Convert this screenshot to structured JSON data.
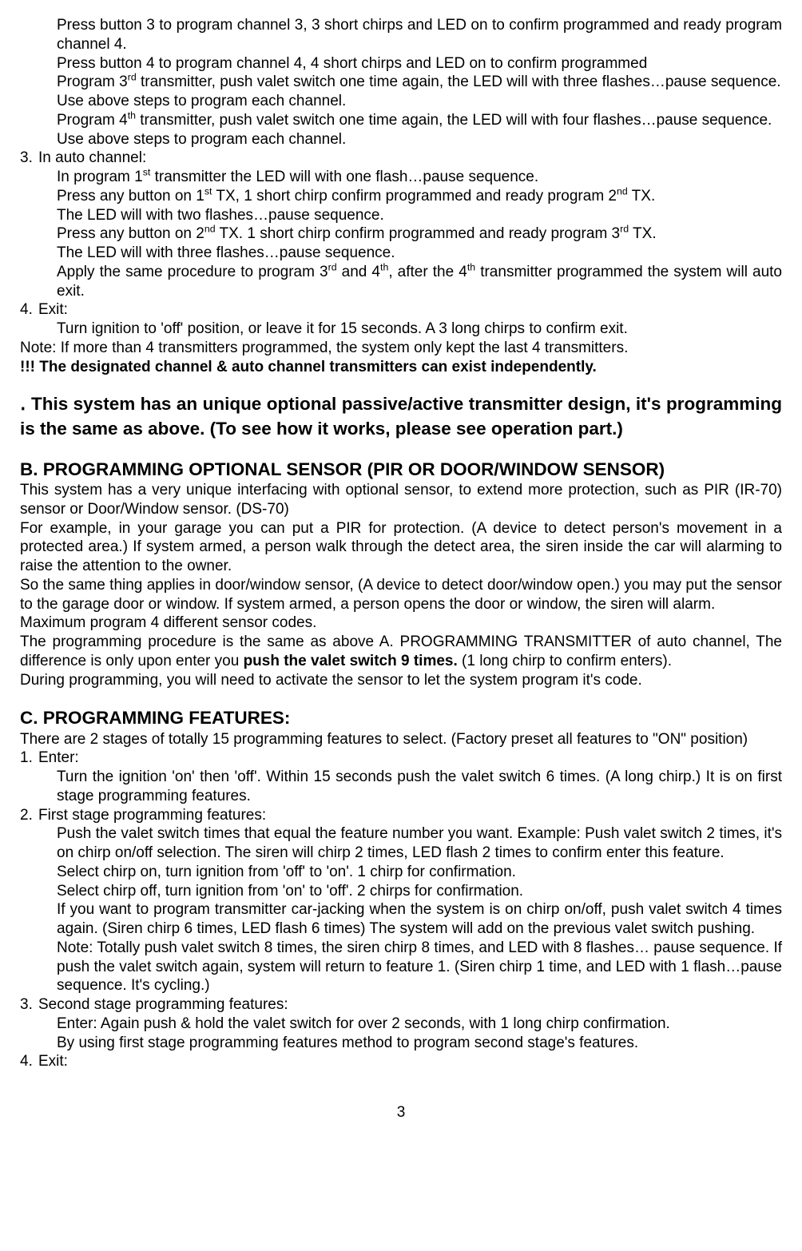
{
  "p1": "Press button 3 to program channel 3, 3 short chirps and LED on to confirm programmed and ready program channel 4.",
  "p2": "Press button 4 to program channel 4, 4 short chirps and LED on to confirm programmed",
  "p3a": "Program 3",
  "p3sup": "rd",
  "p3b": " transmitter, push valet switch one time again, the LED will with three flashes…pause sequence.",
  "p4": "Use above steps to program each channel.",
  "p5a": "Program 4",
  "p5sup": "th",
  "p5b": " transmitter, push valet switch one time again, the LED will with four flashes…pause sequence.",
  "p6": "Use above steps to program each channel.",
  "li3num": "3.",
  "li3": "In auto channel:",
  "p7a": "In program 1",
  "p7sup": "st",
  "p7b": " transmitter the LED will with one flash…pause sequence.",
  "p8a": "Press any button on 1",
  "p8sup1": "st",
  "p8b": " TX, 1 short chirp confirm programmed and ready program 2",
  "p8sup2": "nd",
  "p8c": " TX.",
  "p9": "The LED will with two flashes…pause sequence.",
  "p10a": "Press any button on 2",
  "p10sup1": "nd",
  "p10b": " TX. 1 short chirp confirm programmed and ready program 3",
  "p10sup2": "rd",
  "p10c": " TX.",
  "p11": "The LED will with three flashes…pause sequence.",
  "p12a": "Apply the same procedure to program 3",
  "p12sup1": "rd",
  "p12b": " and 4",
  "p12sup2": "th",
  "p12c": ", after the 4",
  "p12sup3": "th",
  "p12d": " transmitter programmed the system will auto exit.",
  "li4num": "4.",
  "li4": "Exit:",
  "p13": "Turn ignition to 'off' position, or leave it for 15 seconds. A 3 long chirps to confirm exit.",
  "p14": "Note: If more than 4 transmitters programmed, the system only kept the last 4 transmitters.",
  "p15": "!!! The designated channel & auto channel transmitters can exist independently.",
  "bullet": "․ This system has an unique optional passive/active transmitter design, it's programming is the same as above. (To see how it works, please see operation part.)",
  "hB": "B. PROGRAMMING OPTIONAL SENSOR (PIR OR DOOR/WINDOW SENSOR)",
  "b1": "This system has a very unique interfacing with optional sensor, to extend more protection, such as PIR (IR-70) sensor or Door/Window sensor. (DS-70)",
  "b2": "For example, in your garage you can put a PIR for protection. (A device to detect person's movement in a protected area.) If system armed, a person walk through the detect area, the siren inside the car will alarming to raise the attention to the owner.",
  "b3": "So the same thing applies in door/window sensor, (A device to detect door/window open.) you may put the sensor to the garage door or window. If system armed, a person opens the door or window, the siren will alarm.",
  "b4": "Maximum program 4 different sensor codes.",
  "b5a": "The programming procedure is the same as above A. PROGRAMMING TRANSMITTER of auto channel, The difference is only upon enter you ",
  "b5bold": "push the valet switch 9 times.",
  "b5b": " (1 long chirp to confirm enters).",
  "b6": "During programming, you will need to activate the sensor to let the system program it's code.",
  "hC": "C. PROGRAMMING FEATURES:",
  "c0": "There are 2 stages of totally 15 programming features to select. (Factory preset all features to \"ON\" position)",
  "c1num": "1.",
  "c1": "Enter:",
  "c1a": "Turn the ignition 'on' then 'off'. Within 15 seconds push the valet switch 6 times. (A long chirp.) It is on first stage programming features.",
  "c2num": "2.",
  "c2": "First stage programming features:",
  "c2a": "Push the valet switch times that equal the feature number you want. Example: Push valet switch 2 times, it's on chirp on/off selection. The siren will chirp 2 times, LED flash 2 times to confirm enter this feature.",
  "c2b": "Select chirp on, turn ignition from 'off' to 'on'. 1 chirp for confirmation.",
  "c2c": "Select chirp off, turn ignition from 'on' to 'off'. 2 chirps for confirmation.",
  "c2d": "If you want to program transmitter car-jacking when the system is on chirp on/off, push valet switch 4 times again. (Siren chirp 6 times, LED flash 6 times) The system will add on the previous valet switch pushing.",
  "c2e": "Note: Totally push valet switch 8 times, the siren chirp 8 times, and LED with 8 flashes… pause sequence. If push the valet switch again, system will return to feature 1. (Siren chirp 1 time, and LED with 1 flash…pause sequence. It's cycling.)",
  "c3num": "3.",
  "c3": "Second stage programming features:",
  "c3a": "Enter: Again push & hold the valet switch for over 2 seconds, with 1 long chirp confirmation.",
  "c3b": "By using first stage programming features method to program second stage's features.",
  "c4num": "4.",
  "c4": "Exit:",
  "pagenum": "3"
}
